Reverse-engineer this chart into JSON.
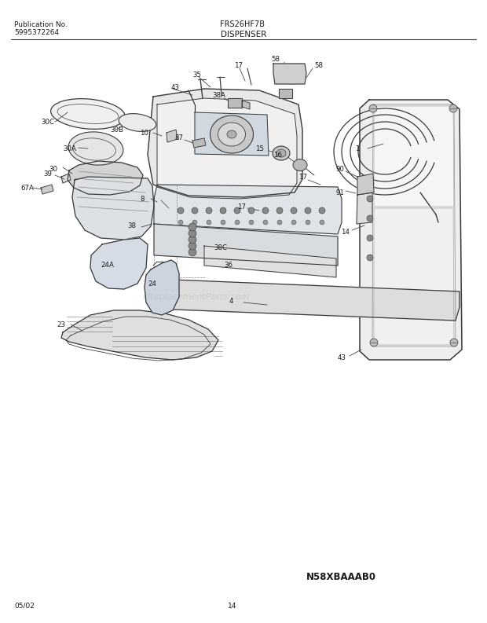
{
  "title": "FRS26HF7B",
  "subtitle": "DISPENSER",
  "pub_label": "Publication No.",
  "pub_number": "5995372264",
  "date_code": "05/02",
  "page_number": "14",
  "diagram_id": "N58XBAAAB0",
  "watermark": "eReplacementParts.com",
  "bg_color": "#ffffff",
  "line_color": "#3a3a3a",
  "text_color": "#1a1a1a",
  "gray_fill": "#e8e8e8",
  "dark_gray": "#c0c0c0",
  "mid_gray": "#d4d4d4"
}
